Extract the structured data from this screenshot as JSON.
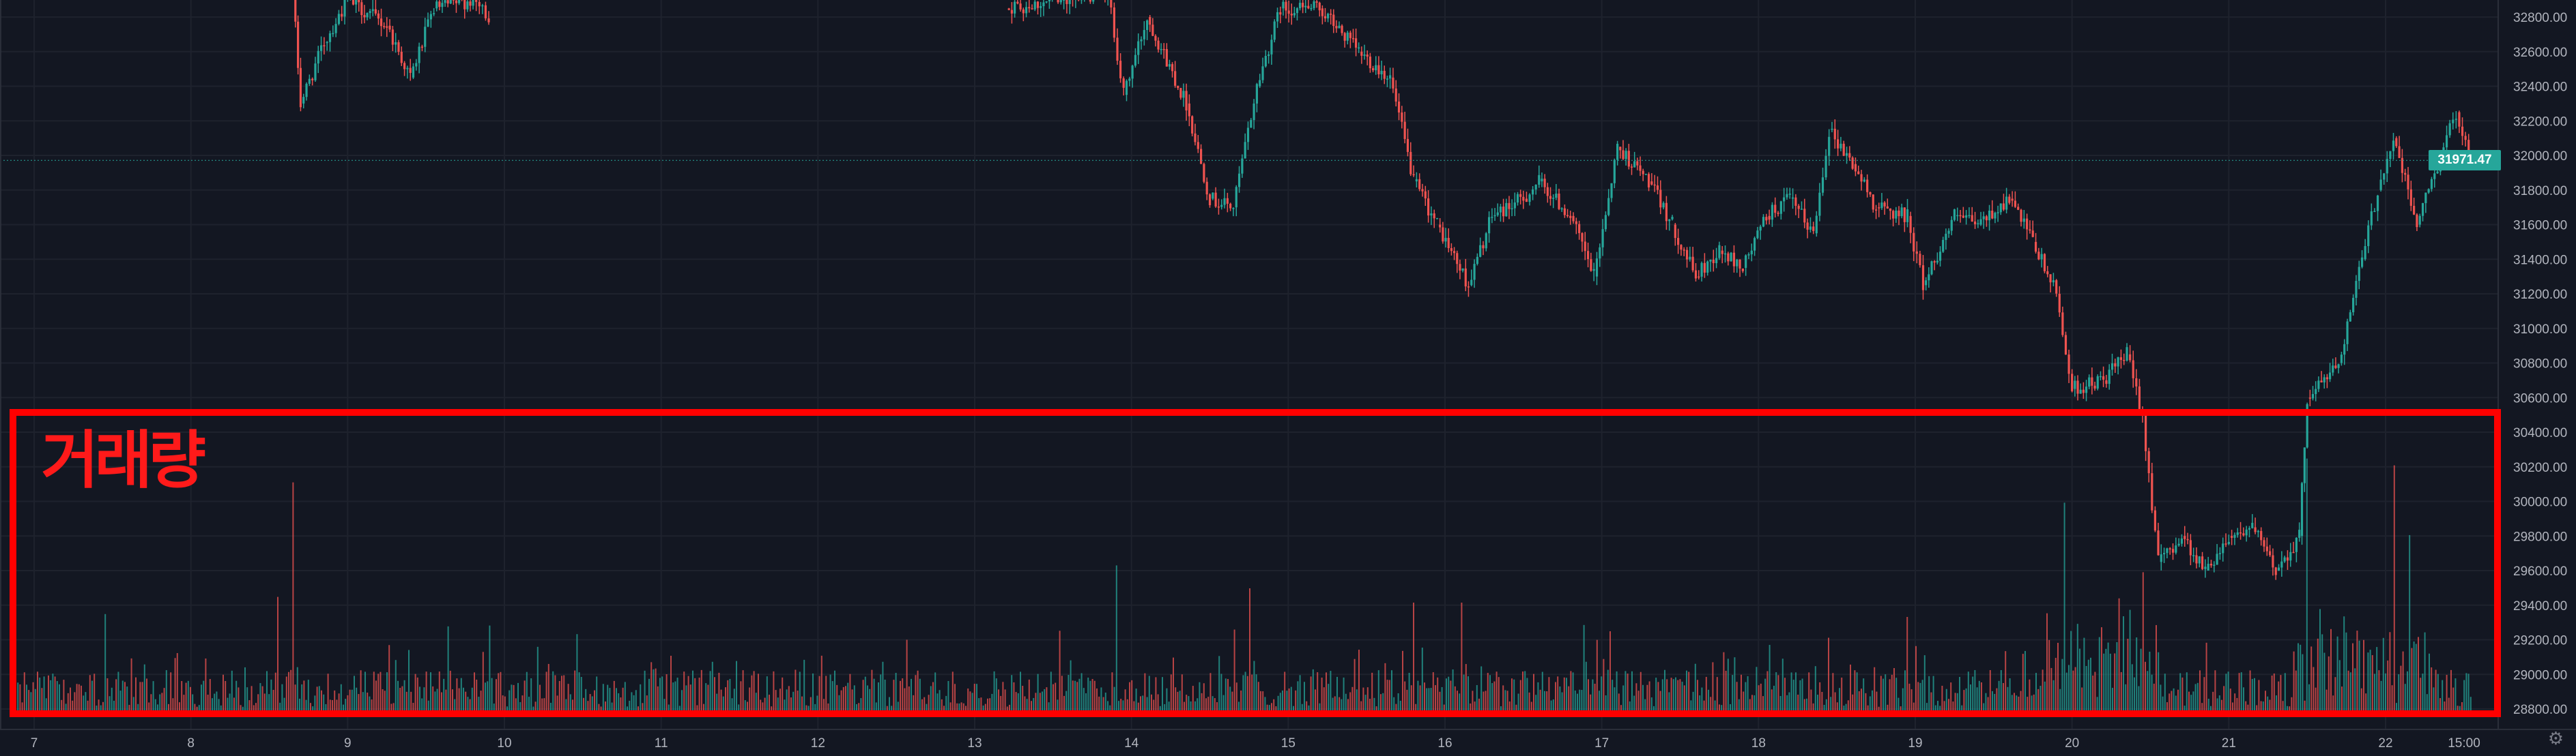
{
  "chart_data": {
    "type": "candlestick",
    "price_axis_ticks": [
      "32800.00",
      "32600.00",
      "32400.00",
      "32200.00",
      "32000.00",
      "31800.00",
      "31600.00",
      "31400.00",
      "31200.00",
      "31000.00",
      "30800.00",
      "30600.00",
      "30400.00",
      "30200.00",
      "30000.00",
      "29800.00",
      "29600.00",
      "29400.00",
      "29200.00",
      "29000.00",
      "28800.00"
    ],
    "time_axis_ticks": [
      "7",
      "8",
      "9",
      "10",
      "11",
      "12",
      "13",
      "14",
      "15",
      "16",
      "17",
      "18",
      "19",
      "20",
      "21",
      "22",
      "15:00"
    ],
    "last_price": "31971.47",
    "ylim": [
      28700,
      33000
    ],
    "up_color": "#26a69a",
    "down_color": "#ef5350",
    "grid": true,
    "price_path": [
      {
        "day": 8.65,
        "price": 32950
      },
      {
        "day": 8.7,
        "price": 32300
      },
      {
        "day": 8.85,
        "price": 32650
      },
      {
        "day": 9.0,
        "price": 32900
      },
      {
        "day": 9.25,
        "price": 32750
      },
      {
        "day": 9.4,
        "price": 32450
      },
      {
        "day": 9.55,
        "price": 32850
      },
      {
        "day": 9.8,
        "price": 32900
      },
      {
        "day": 9.9,
        "price": 32800
      },
      {
        "day": 13.2,
        "price": 32850
      },
      {
        "day": 13.55,
        "price": 32900
      },
      {
        "day": 13.85,
        "price": 32950
      },
      {
        "day": 13.95,
        "price": 32350
      },
      {
        "day": 14.1,
        "price": 32800
      },
      {
        "day": 14.35,
        "price": 32300
      },
      {
        "day": 14.5,
        "price": 31750
      },
      {
        "day": 14.65,
        "price": 31700
      },
      {
        "day": 14.8,
        "price": 32400
      },
      {
        "day": 14.95,
        "price": 32850
      },
      {
        "day": 15.2,
        "price": 32850
      },
      {
        "day": 15.45,
        "price": 32600
      },
      {
        "day": 15.65,
        "price": 32450
      },
      {
        "day": 15.8,
        "price": 31850
      },
      {
        "day": 15.95,
        "price": 31600
      },
      {
        "day": 16.15,
        "price": 31250
      },
      {
        "day": 16.3,
        "price": 31650
      },
      {
        "day": 16.5,
        "price": 31750
      },
      {
        "day": 16.6,
        "price": 31850
      },
      {
        "day": 16.8,
        "price": 31650
      },
      {
        "day": 16.95,
        "price": 31300
      },
      {
        "day": 17.1,
        "price": 32050
      },
      {
        "day": 17.3,
        "price": 31850
      },
      {
        "day": 17.45,
        "price": 31600
      },
      {
        "day": 17.6,
        "price": 31300
      },
      {
        "day": 17.75,
        "price": 31450
      },
      {
        "day": 17.9,
        "price": 31350
      },
      {
        "day": 18.05,
        "price": 31650
      },
      {
        "day": 18.2,
        "price": 31750
      },
      {
        "day": 18.35,
        "price": 31550
      },
      {
        "day": 18.45,
        "price": 32150
      },
      {
        "day": 18.6,
        "price": 31950
      },
      {
        "day": 18.75,
        "price": 31700
      },
      {
        "day": 18.95,
        "price": 31650
      },
      {
        "day": 19.05,
        "price": 31250
      },
      {
        "day": 19.25,
        "price": 31650
      },
      {
        "day": 19.4,
        "price": 31600
      },
      {
        "day": 19.6,
        "price": 31750
      },
      {
        "day": 19.75,
        "price": 31500
      },
      {
        "day": 19.9,
        "price": 31200
      },
      {
        "day": 20.0,
        "price": 30650
      },
      {
        "day": 20.2,
        "price": 30700
      },
      {
        "day": 20.35,
        "price": 30850
      },
      {
        "day": 20.45,
        "price": 30500
      },
      {
        "day": 20.55,
        "price": 29650
      },
      {
        "day": 20.7,
        "price": 29800
      },
      {
        "day": 20.85,
        "price": 29600
      },
      {
        "day": 21.0,
        "price": 29800
      },
      {
        "day": 21.15,
        "price": 29850
      },
      {
        "day": 21.3,
        "price": 29600
      },
      {
        "day": 21.45,
        "price": 29800
      },
      {
        "day": 21.5,
        "price": 30600
      },
      {
        "day": 21.7,
        "price": 30800
      },
      {
        "day": 21.85,
        "price": 31400
      },
      {
        "day": 21.95,
        "price": 31800
      },
      {
        "day": 22.05,
        "price": 32100
      },
      {
        "day": 22.2,
        "price": 31600
      },
      {
        "day": 22.35,
        "price": 32000
      },
      {
        "day": 22.45,
        "price": 32250
      },
      {
        "day": 22.55,
        "price": 31970
      }
    ],
    "volume_spikes": [
      {
        "day": 8.65,
        "rel": 0.82
      },
      {
        "day": 8.85,
        "rel": 0.55
      },
      {
        "day": 8.55,
        "rel": 0.42
      },
      {
        "day": 7.45,
        "rel": 0.36
      },
      {
        "day": 9.9,
        "rel": 0.32
      },
      {
        "day": 13.9,
        "rel": 0.53
      },
      {
        "day": 14.75,
        "rel": 0.45
      },
      {
        "day": 15.8,
        "rel": 0.4
      },
      {
        "day": 16.1,
        "rel": 0.4
      },
      {
        "day": 17.05,
        "rel": 0.3
      },
      {
        "day": 18.95,
        "rel": 0.35
      },
      {
        "day": 19.95,
        "rel": 0.6
      },
      {
        "day": 20.45,
        "rel": 0.48
      },
      {
        "day": 21.5,
        "rel": 0.88
      },
      {
        "day": 22.05,
        "rel": 0.82
      },
      {
        "day": 22.15,
        "rel": 0.55
      }
    ]
  },
  "annotation": {
    "volume_label": "거래량"
  },
  "icons": {
    "settings": "gear-icon"
  }
}
